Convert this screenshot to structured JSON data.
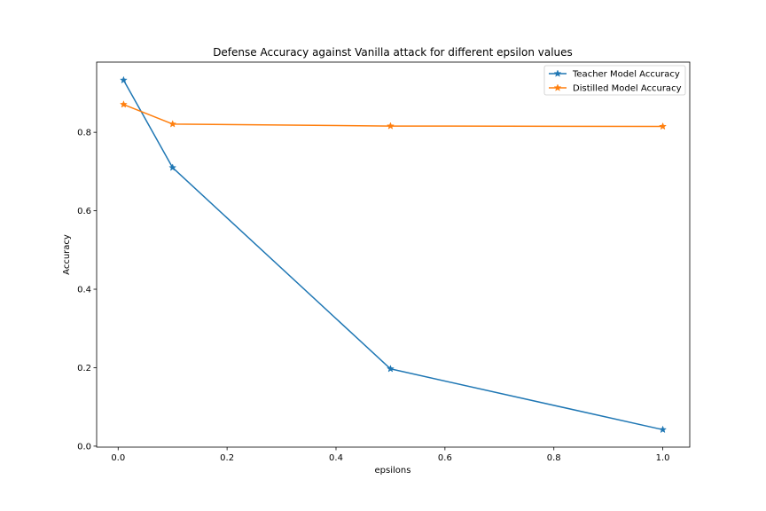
{
  "chart_data": {
    "type": "line",
    "title": "Defense Accuracy against Vanilla attack for different epsilon values",
    "xlabel": "epsilons",
    "ylabel": "Accuracy",
    "x": [
      0.01,
      0.1,
      0.5,
      1.0
    ],
    "series": [
      {
        "name": "Teacher Model Accuracy",
        "values": [
          0.933,
          0.71,
          0.197,
          0.042
        ],
        "color": "#1f77b4",
        "marker": "star"
      },
      {
        "name": "Distilled Model Accuracy",
        "values": [
          0.871,
          0.821,
          0.816,
          0.815
        ],
        "color": "#ff7f0e",
        "marker": "star"
      }
    ],
    "xlim": [
      -0.0395,
      1.0495
    ],
    "ylim": [
      -0.0025,
      0.979
    ],
    "xticks": [
      0.0,
      0.2,
      0.4,
      0.6,
      0.8,
      1.0
    ],
    "xtick_labels": [
      "0.0",
      "0.2",
      "0.4",
      "0.6",
      "0.8",
      "1.0"
    ],
    "yticks": [
      0.0,
      0.2,
      0.4,
      0.6,
      0.8
    ],
    "ytick_labels": [
      "0.0",
      "0.2",
      "0.4",
      "0.6",
      "0.8"
    ],
    "grid": false,
    "legend_position": "top-right"
  }
}
